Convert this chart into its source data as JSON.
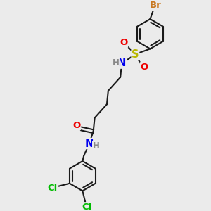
{
  "bg_color": "#ebebeb",
  "bond_color": "#1a1a1a",
  "bond_lw": 1.5,
  "atom_colors": {
    "Br": "#c87820",
    "S": "#b8b800",
    "O": "#ee0000",
    "N": "#0000ee",
    "Cl": "#00bb00",
    "H": "#888888",
    "C": "#1a1a1a"
  },
  "font_size": 9.5,
  "fig_size": [
    3.0,
    3.0
  ],
  "dpi": 100
}
